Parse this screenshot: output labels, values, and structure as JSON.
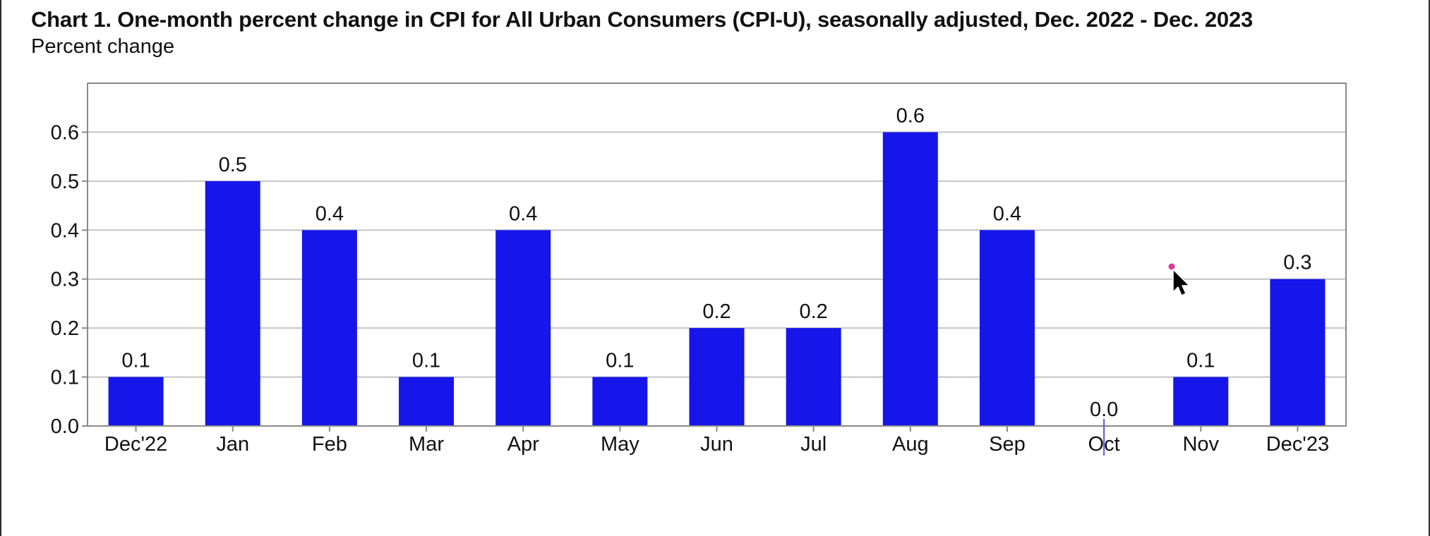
{
  "chart_data": {
    "type": "bar",
    "title": "Chart 1. One-month percent change in CPI for All Urban Consumers (CPI-U), seasonally adjusted, Dec. 2022 - Dec. 2023",
    "ylabel": "Percent change",
    "xlabel": "",
    "categories": [
      "Dec'22",
      "Jan",
      "Feb",
      "Mar",
      "Apr",
      "May",
      "Jun",
      "Jul",
      "Aug",
      "Sep",
      "Oct",
      "Nov",
      "Dec'23"
    ],
    "values": [
      0.1,
      0.5,
      0.4,
      0.1,
      0.4,
      0.1,
      0.2,
      0.2,
      0.6,
      0.4,
      0.0,
      0.1,
      0.3
    ],
    "data_labels": [
      "0.1",
      "0.5",
      "0.4",
      "0.1",
      "0.4",
      "0.1",
      "0.2",
      "0.2",
      "0.6",
      "0.4",
      "0.0",
      "0.1",
      "0.3"
    ],
    "yticks": [
      0.0,
      0.1,
      0.2,
      0.3,
      0.4,
      0.5,
      0.6
    ],
    "ytick_labels": [
      "0.0",
      "0.1",
      "0.2",
      "0.3",
      "0.4",
      "0.5",
      "0.6"
    ],
    "ylim": [
      0.0,
      0.7
    ],
    "grid": true,
    "legend": "none",
    "bar_color": "#1616ea"
  }
}
